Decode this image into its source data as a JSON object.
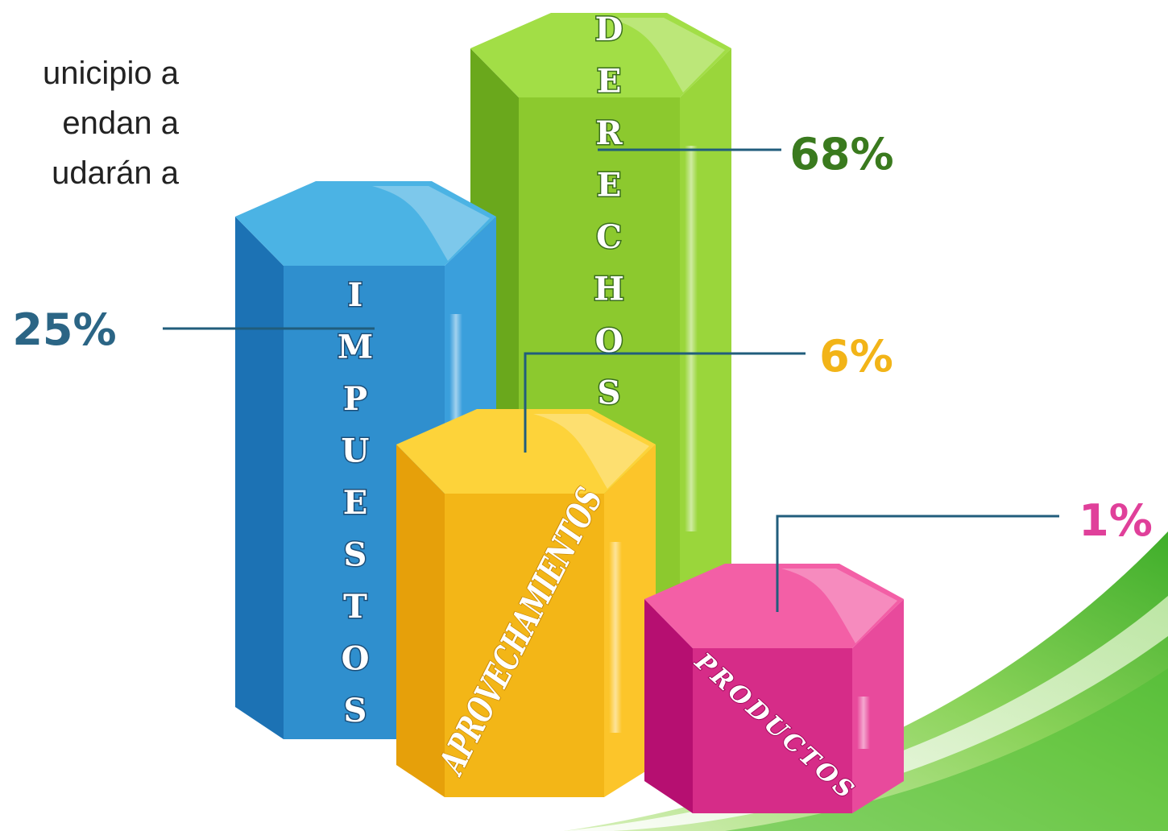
{
  "intro_lines": [
    "unicipio  a",
    "endan  a",
    "udarán  a"
  ],
  "chart_data": {
    "type": "bar",
    "title": "",
    "xlabel": "",
    "ylabel": "",
    "categories": [
      "IMPUESTOS",
      "DERECHOS",
      "APROVECHAMIENTOS",
      "PRODUCTOS"
    ],
    "values": [
      25,
      68,
      6,
      1
    ],
    "value_labels": [
      "25%",
      "68%",
      "6%",
      "1%"
    ],
    "unit": "%",
    "grid": false,
    "legend": "none",
    "colors": {
      "IMPUESTOS": {
        "top": "#4bb3e4",
        "front": "#2f8fce",
        "side": "#1c72b4",
        "right": "#3a9fdc",
        "label": "#2b6585"
      },
      "DERECHOS": {
        "top": "#a2de46",
        "front": "#8cc92e",
        "side": "#6aa81c",
        "right": "#9ad63b",
        "label": "#3a7a1e"
      },
      "APROVECHAMIENTOS": {
        "top": "#fdd33a",
        "front": "#f3b617",
        "side": "#e6a00a",
        "right": "#fcc52a",
        "label": "#f2b418"
      },
      "PRODUCTOS": {
        "top": "#f35fa6",
        "front": "#d62c88",
        "side": "#b60f71",
        "right": "#e84a9c",
        "label": "#e0409a"
      }
    },
    "leader_color": "#215d7c",
    "background_swoosh": [
      "#3fae2a",
      "#8bd35a",
      "#d6f0b8"
    ]
  }
}
